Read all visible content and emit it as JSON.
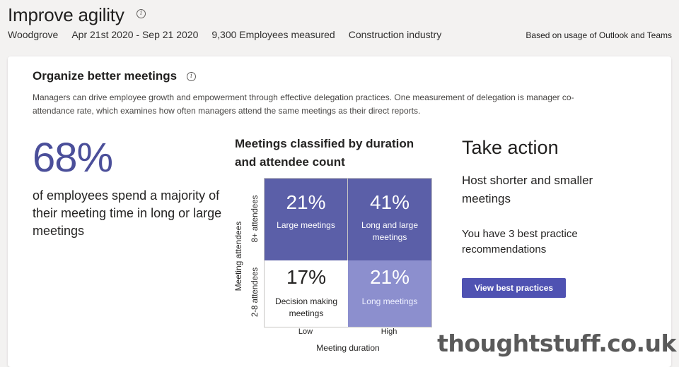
{
  "header": {
    "title": "Improve agility",
    "info_icon": "info-icon",
    "meta": [
      "Woodgrove",
      "Apr 21st 2020 - Sep 21 2020",
      "9,300 Employees measured",
      "Construction industry"
    ],
    "usage_note": "Based on usage of Outlook and Teams"
  },
  "card": {
    "title": "Organize better meetings",
    "description": "Managers can drive employee growth and empowerment through effective delegation practices. One measurement of delegation is manager co-attendance rate, which examines how often managers attend the same meetings as their direct reports."
  },
  "stat": {
    "value": "68%",
    "text": "of employees spend a majority of their meeting time in long or large meetings"
  },
  "matrix": {
    "title": "Meetings classified by duration and attendee count",
    "y_title": "Meeting attendees",
    "x_title": "Meeting duration",
    "rows": [
      "8+ attendees",
      "2-8 attendees"
    ],
    "cols": [
      "Low",
      "High"
    ],
    "cells": [
      {
        "pct": "21%",
        "label": "Large meetings",
        "style": "dark"
      },
      {
        "pct": "41%",
        "label": "Long and large meetings",
        "style": "dark"
      },
      {
        "pct": "17%",
        "label": "Decision making meetings",
        "style": "white"
      },
      {
        "pct": "21%",
        "label": "Long meetings",
        "style": "light"
      }
    ],
    "colors": {
      "dark": "#5b5fa8",
      "light": "#8c8fce",
      "white": "#ffffff"
    }
  },
  "chart_data": {
    "type": "heatmap",
    "title": "Meetings classified by duration and attendee count",
    "xlabel": "Meeting duration",
    "ylabel": "Meeting attendees",
    "x": [
      "Low",
      "High"
    ],
    "y": [
      "8+ attendees",
      "2-8 attendees"
    ],
    "values": [
      [
        21,
        41
      ],
      [
        17,
        21
      ]
    ],
    "labels": [
      [
        "Large meetings",
        "Long and large meetings"
      ],
      [
        "Decision making meetings",
        "Long meetings"
      ]
    ]
  },
  "action": {
    "title": "Take action",
    "subtitle": "Host shorter and smaller meetings",
    "count_text": "You have 3 best practice recommendations",
    "button_label": "View best practices",
    "button_color": "#4f52b2"
  },
  "watermark": "thoughtstuff.co.uk"
}
